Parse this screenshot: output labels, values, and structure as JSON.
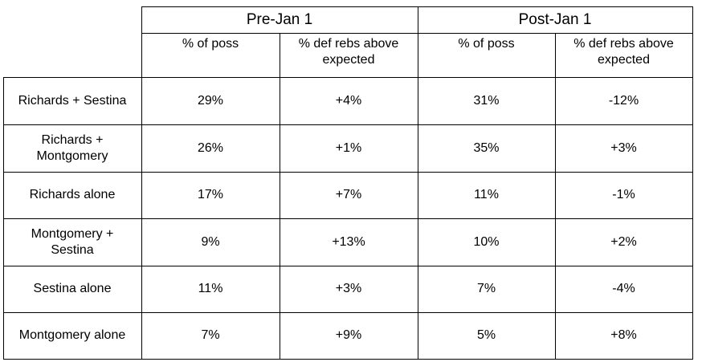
{
  "chart_data": {
    "type": "table",
    "column_groups": [
      "Pre-Jan 1",
      "Post-Jan 1"
    ],
    "sub_columns": [
      "% of poss",
      "% def rebs above\nexpected"
    ],
    "rows": [
      {
        "label": "Richards + Sestina",
        "pre": [
          "29%",
          "+4%"
        ],
        "post": [
          "31%",
          "-12%"
        ]
      },
      {
        "label": "Richards +\nMontgomery",
        "pre": [
          "26%",
          "+1%"
        ],
        "post": [
          "35%",
          "+3%"
        ]
      },
      {
        "label": "Richards alone",
        "pre": [
          "17%",
          "+7%"
        ],
        "post": [
          "11%",
          "-1%"
        ]
      },
      {
        "label": "Montgomery +\nSestina",
        "pre": [
          "9%",
          "+13%"
        ],
        "post": [
          "10%",
          "+2%"
        ]
      },
      {
        "label": "Sestina alone",
        "pre": [
          "11%",
          "+3%"
        ],
        "post": [
          "7%",
          "-4%"
        ]
      },
      {
        "label": "Montgomery alone",
        "pre": [
          "7%",
          "+9%"
        ],
        "post": [
          "5%",
          "+8%"
        ]
      }
    ]
  }
}
